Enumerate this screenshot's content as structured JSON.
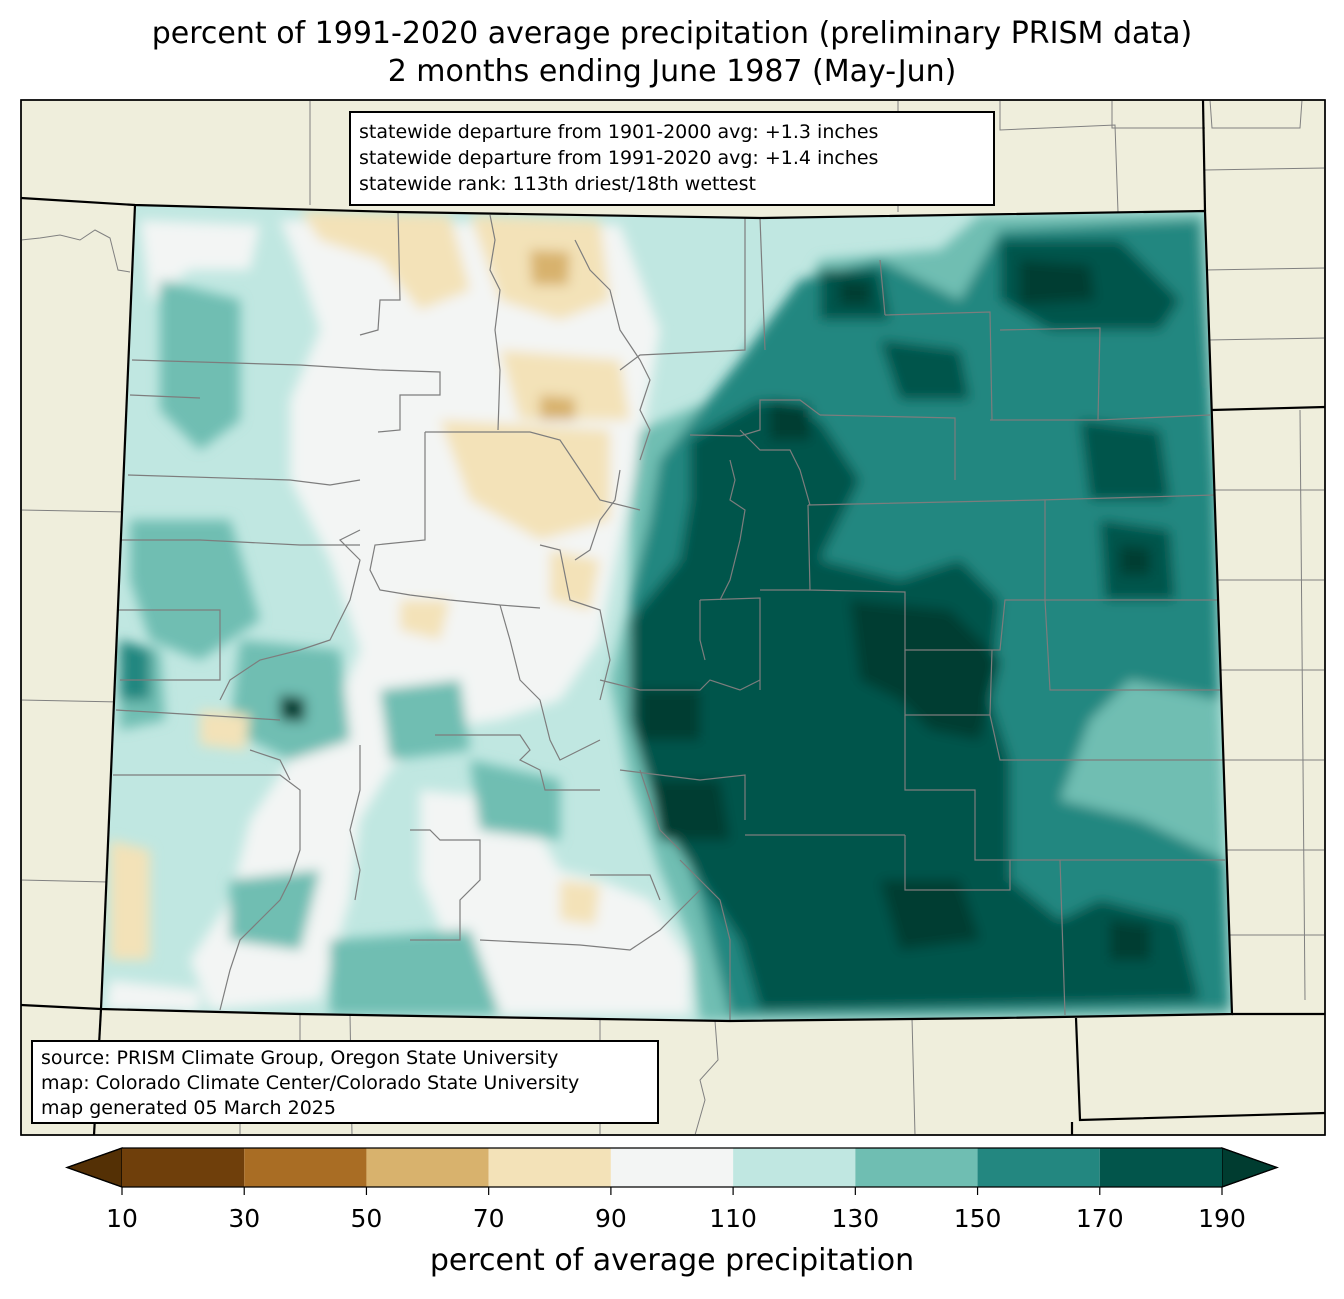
{
  "title_line1": "percent of 1991-2020 average precipitation (preliminary PRISM data)",
  "title_line2": "2 months ending June 1987 (May-Jun)",
  "stats": {
    "line1": "statewide departure from 1901-2000 avg: +1.3 inches",
    "line2": "statewide departure from 1991-2020 avg: +1.4 inches",
    "line3": "statewide rank: 113th driest/18th wettest"
  },
  "source": {
    "line1": "source: PRISM Climate Group, Oregon State University",
    "line2": "map: Colorado Climate Center/Colorado State University",
    "line3": "map generated 05 March 2025"
  },
  "colorbar": {
    "label": "percent of average precipitation",
    "ticks": [
      "10",
      "30",
      "50",
      "70",
      "90",
      "110",
      "130",
      "150",
      "170",
      "190"
    ],
    "under_color": "#543005",
    "over_color": "#003c30",
    "colors": [
      "#6f3f0b",
      "#a96d24",
      "#d8b26d",
      "#f3e2b8",
      "#f3f5f4",
      "#c0e7e1",
      "#6fbeb2",
      "#238780",
      "#02554b"
    ]
  },
  "colors": {
    "background_land": "#efeedc",
    "state_border": "#000000",
    "county_border": "#808080"
  }
}
